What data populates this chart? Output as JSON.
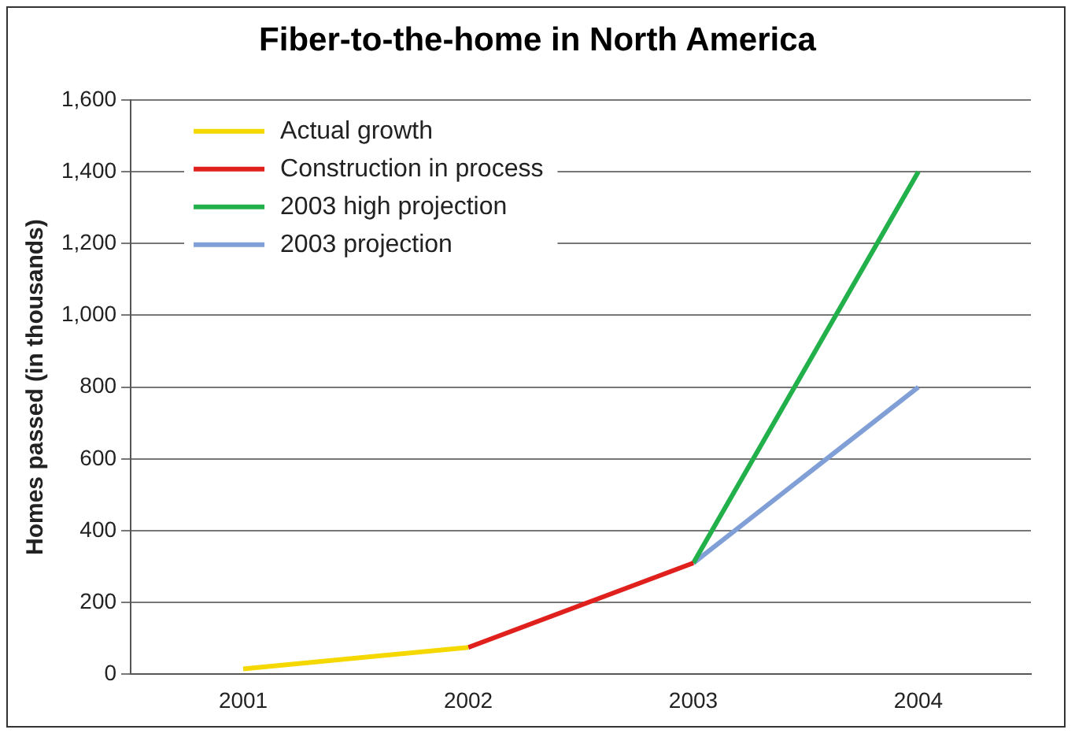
{
  "chart_data": {
    "type": "line",
    "title": "Fiber-to-the-home in North America",
    "ylabel": "Homes passed (in thousands)",
    "categories": [
      "2001",
      "2002",
      "2003",
      "2004"
    ],
    "series": [
      {
        "name": "Actual growth",
        "color": "#f5d800",
        "values": [
          15,
          75,
          null,
          null
        ]
      },
      {
        "name": "Construction in process",
        "color": "#e0201c",
        "values": [
          null,
          75,
          310,
          null
        ]
      },
      {
        "name": "2003 high projection",
        "color": "#22b04a",
        "values": [
          null,
          null,
          310,
          1400
        ]
      },
      {
        "name": "2003 projection",
        "color": "#7f9fd6",
        "values": [
          null,
          null,
          310,
          800
        ]
      }
    ],
    "ylim": [
      0,
      1600
    ],
    "yticks": [
      {
        "value": 0,
        "label": "0"
      },
      {
        "value": 200,
        "label": "200"
      },
      {
        "value": 400,
        "label": "400"
      },
      {
        "value": 600,
        "label": "600"
      },
      {
        "value": 800,
        "label": "800"
      },
      {
        "value": 1000,
        "label": "1,000"
      },
      {
        "value": 1200,
        "label": "1,200"
      },
      {
        "value": 1400,
        "label": "1,400"
      },
      {
        "value": 1600,
        "label": "1,600"
      }
    ],
    "grid": "y",
    "legend": "top left",
    "marker": "none",
    "line_style": "solid"
  }
}
